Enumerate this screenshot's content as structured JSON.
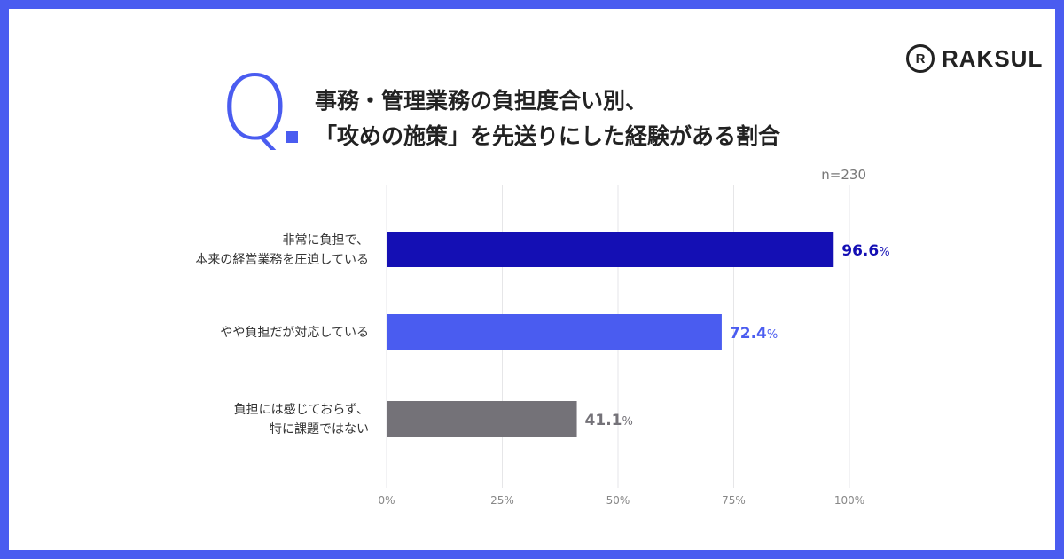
{
  "brand": {
    "name": "RAKSUL",
    "icon": "raksul-logo-icon"
  },
  "question": {
    "mark": "Q",
    "title_line1": "事務・管理業務の負担度合い別、",
    "title_line2": "「攻めの施策」を先送りにした経験がある割合"
  },
  "chart_data": {
    "type": "bar",
    "orientation": "horizontal",
    "note": "n=230",
    "categories": [
      [
        "非常に負担で、",
        "本来の経営業務を圧迫している"
      ],
      [
        "やや負担だが対応している"
      ],
      [
        "負担には感じておらず、",
        "特に課題ではない"
      ]
    ],
    "values": [
      96.6,
      72.4,
      41.1
    ],
    "value_labels": [
      "96.6",
      "72.4",
      "41.1"
    ],
    "value_unit": "%",
    "colors": [
      "#140fb4",
      "#4a5cf0",
      "#747278"
    ],
    "xlim": [
      0,
      100
    ],
    "xticks": [
      0,
      25,
      50,
      75,
      100
    ],
    "xtick_labels": [
      "0%",
      "25%",
      "50%",
      "75%",
      "100%"
    ],
    "grid": true
  }
}
